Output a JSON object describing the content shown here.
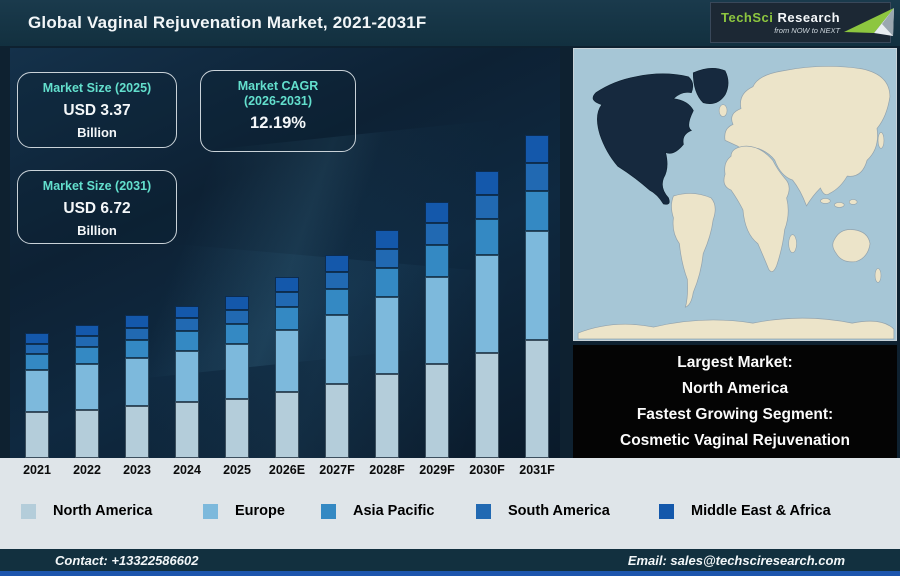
{
  "header": {
    "title": "Global Vaginal Rejuvenation Market, 2021-2031F",
    "logo": {
      "brand_primary": "TechSci",
      "brand_secondary": "Research",
      "tagline": "from NOW to NEXT",
      "accent_color": "#8dc63f"
    }
  },
  "info_boxes": {
    "market_size_2025": {
      "title": "Market Size (2025)",
      "value": "USD 3.37",
      "unit": "Billion"
    },
    "market_cagr": {
      "title": "Market CAGR",
      "subtitle": "(2026-2031)",
      "value": "12.19%"
    },
    "market_size_2031": {
      "title": "Market Size (2031)",
      "value": "USD 6.72",
      "unit": "Billion"
    }
  },
  "chart_data": {
    "type": "bar",
    "stacked": true,
    "title": "Global Vaginal Rejuvenation Market, 2021-2031F",
    "unit": "USD Billion",
    "categories": [
      "2021",
      "2022",
      "2023",
      "2024",
      "2025",
      "2026E",
      "2027F",
      "2028F",
      "2029F",
      "2030F",
      "2031F"
    ],
    "series": [
      {
        "name": "North America",
        "color": "#b4cdda",
        "values": [
          0.95,
          1.01,
          1.08,
          1.16,
          1.23,
          1.38,
          1.55,
          1.74,
          1.95,
          2.19,
          2.45
        ]
      },
      {
        "name": "Europe",
        "color": "#7db9dc",
        "values": [
          0.88,
          0.95,
          1.01,
          1.08,
          1.15,
          1.29,
          1.44,
          1.62,
          1.82,
          2.04,
          2.28
        ]
      },
      {
        "name": "Asia Pacific",
        "color": "#3489c3",
        "values": [
          0.33,
          0.35,
          0.37,
          0.4,
          0.42,
          0.47,
          0.53,
          0.6,
          0.67,
          0.75,
          0.84
        ]
      },
      {
        "name": "South America",
        "color": "#2169b2",
        "values": [
          0.22,
          0.24,
          0.25,
          0.27,
          0.29,
          0.32,
          0.36,
          0.4,
          0.45,
          0.51,
          0.57
        ]
      },
      {
        "name": "Middle East & Africa",
        "color": "#1458ab",
        "values": [
          0.22,
          0.23,
          0.26,
          0.26,
          0.28,
          0.32,
          0.36,
          0.4,
          0.45,
          0.5,
          0.58
        ]
      }
    ],
    "totals": [
      2.6,
      2.78,
      2.97,
      3.17,
      3.37,
      3.78,
      4.24,
      4.76,
      5.34,
      5.99,
      6.72
    ],
    "anchors": {
      "market_size_2025_usd_billion": 3.37,
      "market_size_2031_usd_billion": 6.72,
      "cagr_2026_2031_percent": 12.19
    },
    "legend_position": "bottom",
    "grid": false
  },
  "map": {
    "highlighted_region": "North America",
    "highlight_color": "#16293e",
    "land_color": "#ece4c9",
    "ocean_color": "#a6c6d6"
  },
  "callout": {
    "line1": "Largest Market:",
    "line2": "North America",
    "line3": "Fastest Growing Segment:",
    "line4": "Cosmetic Vaginal Rejuvenation"
  },
  "footer": {
    "contact": "Contact: +13322586602",
    "email": "Email: sales@techsciresearch.com"
  }
}
